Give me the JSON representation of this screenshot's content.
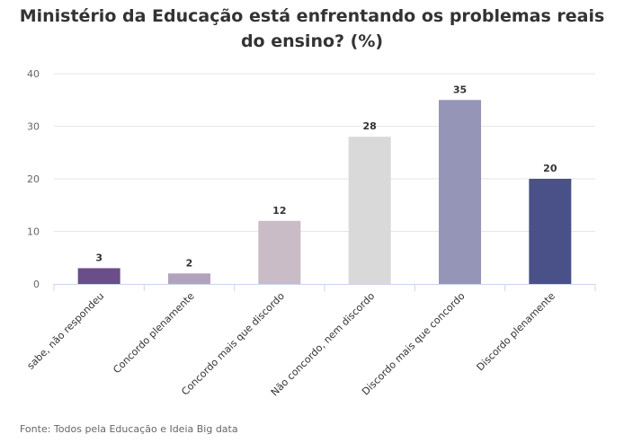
{
  "chart_data": {
    "type": "bar",
    "title": "Ministério da Educação está enfrentando os problemas reais do ensino? (%)",
    "categories": [
      "sabe, não respondeu",
      "Concordo plenamente",
      "Concordo mais que discordo",
      "Não concordo, nem discordo",
      "Discordo mais que concordo",
      "Discordo plenamente"
    ],
    "values": [
      3,
      2,
      12,
      28,
      35,
      20
    ],
    "colors": [
      "#6b4d8a",
      "#b3a2bd",
      "#c9bcc6",
      "#d9d9d9",
      "#9596b7",
      "#4a5188"
    ],
    "ylim": [
      0,
      40
    ],
    "yticks": [
      0,
      10,
      20,
      30,
      40
    ],
    "grid": true,
    "legend": "none"
  },
  "source": "Fonte: Todos pela Educação e Ideia Big data"
}
